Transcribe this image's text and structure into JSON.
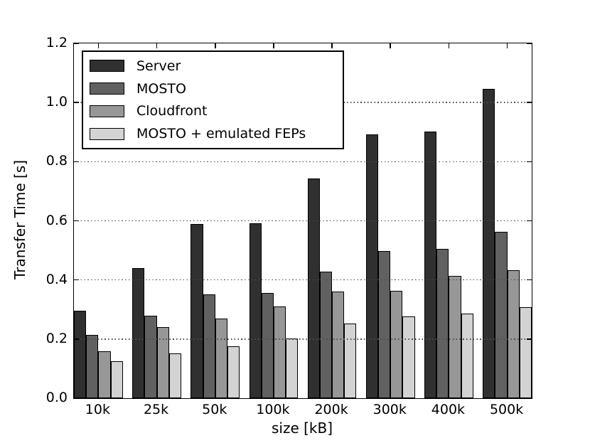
{
  "chart_data": {
    "type": "bar",
    "title": "",
    "xlabel": "size [kB]",
    "ylabel": "Transfer Time [s]",
    "categories": [
      "10k",
      "25k",
      "50k",
      "100k",
      "200k",
      "300k",
      "400k",
      "500k"
    ],
    "series": [
      {
        "name": "Server",
        "color": "#303030",
        "values": [
          0.295,
          0.44,
          0.59,
          0.592,
          0.743,
          0.893,
          0.903,
          1.045
        ]
      },
      {
        "name": "MOSTO",
        "color": "#616161",
        "values": [
          0.214,
          0.28,
          0.35,
          0.356,
          0.428,
          0.498,
          0.504,
          0.563
        ]
      },
      {
        "name": "Cloudfront",
        "color": "#979797",
        "values": [
          0.159,
          0.24,
          0.269,
          0.31,
          0.361,
          0.362,
          0.414,
          0.433
        ]
      },
      {
        "name": "MOSTO + emulated FEPs",
        "color": "#d3d3d3",
        "values": [
          0.125,
          0.151,
          0.176,
          0.203,
          0.253,
          0.276,
          0.287,
          0.307
        ]
      }
    ],
    "ylim": [
      0,
      1.2
    ],
    "yticks": [
      "0.0",
      "0.2",
      "0.4",
      "0.6",
      "0.8",
      "1.0",
      "1.2"
    ],
    "grid": "horizontal-dotted",
    "grid_above_bars": true,
    "legend_position": "upper-left",
    "bar_edge_color": "#000000",
    "background": "#ffffff"
  }
}
